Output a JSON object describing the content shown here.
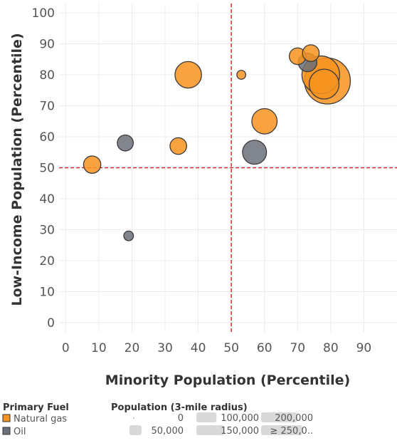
{
  "chart_data": {
    "type": "scatter",
    "xlabel": "Minority Population (Percentile)",
    "ylabel": "Low-Income Population (Percentile)",
    "xlim": [
      -2,
      100
    ],
    "ylim": [
      -3,
      103
    ],
    "x_ticks": [
      0,
      10,
      20,
      30,
      40,
      50,
      60,
      70,
      80,
      90
    ],
    "y_ticks": [
      0,
      10,
      20,
      30,
      40,
      50,
      60,
      70,
      80,
      90,
      100
    ],
    "reference_lines": {
      "x": 50,
      "y": 50,
      "color": "#d62728"
    },
    "grid": true,
    "colors": {
      "Natural gas": "#f7931e",
      "Oil": "#6b7079"
    },
    "points": [
      {
        "x": 8,
        "y": 51,
        "fuel": "Natural gas",
        "population": 60000
      },
      {
        "x": 18,
        "y": 58,
        "fuel": "Oil",
        "population": 50000
      },
      {
        "x": 19,
        "y": 28,
        "fuel": "Oil",
        "population": 15000
      },
      {
        "x": 34,
        "y": 57,
        "fuel": "Natural gas",
        "population": 55000
      },
      {
        "x": 37,
        "y": 80,
        "fuel": "Natural gas",
        "population": 155000
      },
      {
        "x": 53,
        "y": 80,
        "fuel": "Natural gas",
        "population": 12000
      },
      {
        "x": 57,
        "y": 55,
        "fuel": "Oil",
        "population": 125000
      },
      {
        "x": 60,
        "y": 65,
        "fuel": "Natural gas",
        "population": 140000
      },
      {
        "x": 70,
        "y": 86,
        "fuel": "Natural gas",
        "population": 55000
      },
      {
        "x": 73,
        "y": 84,
        "fuel": "Oil",
        "population": 70000
      },
      {
        "x": 74,
        "y": 87,
        "fuel": "Natural gas",
        "population": 55000
      },
      {
        "x": 79,
        "y": 78,
        "fuel": "Natural gas",
        "population": 500000
      },
      {
        "x": 77,
        "y": 80,
        "fuel": "Natural gas",
        "population": 330000
      },
      {
        "x": 78,
        "y": 77,
        "fuel": "Natural gas",
        "population": 200000
      }
    ],
    "legend": {
      "fuel_title": "Primary Fuel",
      "fuel_items": [
        "Natural gas",
        "Oil"
      ],
      "size_title": "Population (3-mile radius)",
      "size_items": [
        {
          "label": "0",
          "value": 0
        },
        {
          "label": "50,000",
          "value": 50000
        },
        {
          "label": "100,000",
          "value": 100000
        },
        {
          "label": "150,000",
          "value": 150000
        },
        {
          "label": "200,000",
          "value": 200000
        },
        {
          "label": "≥ 250,0..",
          "value": 250000
        }
      ]
    }
  }
}
